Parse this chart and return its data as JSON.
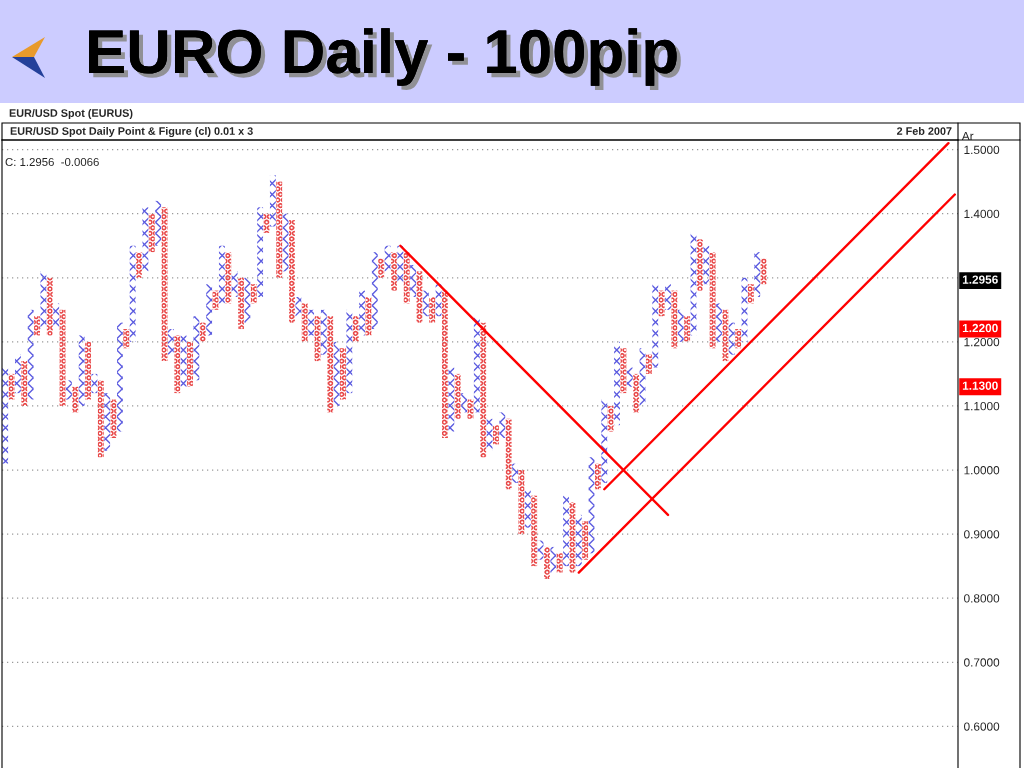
{
  "chart_data": {
    "type": "bar",
    "title": "EURO Daily - 100pip",
    "subtitle": "EUR/USD Spot (EURUS)",
    "ylabel": "Ar",
    "annotations": [
      "EUR/USD Spot Daily Point & Figure (cl) 0.01 x 3",
      "2 Feb 2007",
      "C: 1.2956  -0.0066",
      {
        "text": "1.2956",
        "y": 1.2956
      },
      {
        "text": "1.2200",
        "y": 1.22
      },
      {
        "text": "1.1300",
        "y": 1.13
      }
    ],
    "categories": [
      null,
      null,
      null,
      null,
      null,
      null,
      null,
      null,
      null,
      null,
      null,
      null,
      null,
      null,
      null,
      null,
      null,
      null,
      null,
      null,
      null,
      null,
      null,
      null,
      null,
      null,
      null,
      null,
      null,
      null,
      null,
      null,
      null,
      null,
      null,
      null,
      null,
      null,
      null,
      null,
      null,
      null,
      null,
      null,
      null,
      null,
      null,
      null,
      null,
      null,
      null,
      null,
      null,
      null,
      null,
      null,
      null,
      null,
      null,
      null,
      null,
      null,
      null,
      null,
      null,
      null,
      null,
      null,
      null,
      null,
      null,
      null,
      null,
      null,
      null,
      null,
      null,
      null,
      null,
      null,
      null,
      null,
      null,
      null,
      null,
      null,
      null,
      null,
      null,
      null,
      null,
      null,
      null,
      null,
      null,
      null,
      null,
      null,
      null,
      null,
      null,
      null,
      null,
      null,
      null,
      null,
      null,
      null,
      null,
      null,
      null,
      null,
      null,
      null,
      null,
      null,
      null,
      null,
      null,
      null,
      null,
      null,
      null,
      null,
      null,
      null,
      null,
      null,
      null,
      null,
      null,
      null,
      null,
      null,
      null,
      null,
      null,
      null,
      null,
      null,
      null,
      null,
      null,
      null,
      null,
      null,
      null,
      null,
      null,
      null
    ],
    "series": [
      {
        "color": "#5c5ce0",
        "marker": "cross",
        "base": [
          1.01,
          null,
          1.12,
          null,
          1.11,
          null,
          1.22,
          null,
          1.22,
          null,
          1.11,
          null,
          1.1,
          null,
          1.12,
          null,
          1.03,
          null,
          1.06,
          null,
          1.2,
          null,
          1.31,
          null,
          1.35,
          null,
          1.18,
          null,
          1.13,
          null,
          1.14,
          null,
          1.21,
          null,
          1.26,
          null,
          1.27,
          null,
          1.23,
          null,
          1.27,
          null,
          1.38,
          null,
          1.31,
          null,
          1.24,
          null,
          1.21,
          null,
          1.18,
          null,
          1.1,
          null,
          1.12,
          null,
          1.21,
          null,
          1.22,
          null,
          1.31,
          null,
          1.29,
          null,
          1.27,
          null,
          1.24,
          null,
          1.24,
          null,
          1.06,
          null,
          1.09,
          null,
          1.09,
          null,
          1.03,
          null,
          1.05,
          null,
          0.98,
          null,
          0.91,
          null,
          0.86,
          null,
          0.84,
          null,
          0.85,
          null,
          0.85,
          null,
          0.87,
          null,
          0.98,
          null,
          1.07,
          null,
          1.13,
          null,
          1.1,
          null,
          1.16,
          null,
          1.25,
          null,
          1.2,
          null,
          1.21,
          null,
          1.29,
          null,
          1.2,
          null,
          1.18,
          null,
          1.2,
          null,
          1.27,
          null,
          null,
          null,
          null,
          null,
          null,
          null,
          null,
          null,
          null,
          null,
          null,
          null,
          null,
          null,
          null,
          null,
          null,
          null,
          null,
          null,
          null,
          null,
          null,
          null,
          null,
          null,
          null,
          null,
          null,
          null
        ],
        "values": [
          0.15,
          null,
          0.06,
          null,
          0.14,
          null,
          0.09,
          null,
          0.04,
          null,
          0.03,
          null,
          0.11,
          null,
          0.03,
          null,
          0.09,
          null,
          0.17,
          null,
          0.15,
          null,
          0.1,
          null,
          0.07,
          null,
          0.04,
          null,
          0.08,
          null,
          0.1,
          null,
          0.08,
          null,
          0.09,
          null,
          0.04,
          null,
          0.07,
          null,
          0.14,
          null,
          0.08,
          null,
          0.09,
          null,
          0.03,
          null,
          0.04,
          null,
          0.07,
          null,
          0.1,
          null,
          0.13,
          null,
          0.07,
          null,
          0.12,
          null,
          0.04,
          null,
          0.06,
          null,
          0.05,
          null,
          0.04,
          null,
          0.05,
          null,
          0.1,
          null,
          0.03,
          null,
          0.15,
          null,
          0.05,
          null,
          0.04,
          null,
          0.03,
          null,
          0.06,
          null,
          0.03,
          null,
          0.04,
          null,
          0.11,
          null,
          0.08,
          null,
          0.15,
          null,
          0.13,
          null,
          0.13,
          null,
          0.03,
          null,
          0.09,
          null,
          0.13,
          null,
          0.04,
          null,
          0.05,
          null,
          0.16,
          null,
          0.06,
          null,
          0.06,
          null,
          0.05,
          null,
          0.1,
          null,
          0.07,
          null,
          null,
          null,
          null,
          null,
          null,
          null,
          null,
          null,
          null,
          null,
          null,
          null,
          null,
          null,
          null,
          null,
          null,
          null,
          null,
          null,
          null,
          null,
          null,
          null,
          null,
          null,
          null,
          null,
          null,
          null
        ]
      },
      {
        "color": "#e84848",
        "marker": "circle",
        "base": [
          null,
          1.11,
          null,
          1.1,
          null,
          1.21,
          null,
          1.21,
          null,
          1.1,
          null,
          1.09,
          null,
          1.11,
          null,
          1.02,
          null,
          1.05,
          null,
          1.19,
          null,
          1.3,
          null,
          1.34,
          null,
          1.17,
          null,
          1.12,
          null,
          1.13,
          null,
          1.2,
          null,
          1.25,
          null,
          1.26,
          null,
          1.22,
          null,
          1.26,
          null,
          1.37,
          null,
          1.3,
          null,
          1.23,
          null,
          1.2,
          null,
          1.17,
          null,
          1.09,
          null,
          1.11,
          null,
          1.2,
          null,
          1.21,
          null,
          1.3,
          null,
          1.28,
          null,
          1.26,
          null,
          1.23,
          null,
          1.23,
          null,
          1.05,
          null,
          1.08,
          null,
          1.08,
          null,
          1.02,
          null,
          1.04,
          null,
          0.97,
          null,
          0.9,
          null,
          0.85,
          null,
          0.83,
          null,
          0.84,
          null,
          0.84,
          null,
          0.86,
          null,
          0.97,
          null,
          1.06,
          null,
          1.12,
          null,
          1.09,
          null,
          1.15,
          null,
          1.24,
          null,
          1.19,
          null,
          1.2,
          null,
          1.28,
          null,
          1.19,
          null,
          1.17,
          null,
          1.19,
          null,
          1.26,
          null,
          1.29,
          null,
          null,
          null,
          null,
          null,
          null,
          null,
          null,
          null,
          null,
          null,
          null,
          null,
          null,
          null,
          null,
          null,
          null,
          null,
          null,
          null,
          null,
          null,
          null,
          null,
          null,
          null,
          null,
          null,
          null
        ],
        "values": [
          null,
          0.04,
          null,
          0.07,
          null,
          0.03,
          null,
          0.09,
          null,
          0.15,
          null,
          0.04,
          null,
          0.09,
          null,
          0.12,
          null,
          0.06,
          null,
          0.03,
          null,
          0.04,
          null,
          0.06,
          null,
          0.24,
          null,
          0.09,
          null,
          0.07,
          null,
          0.03,
          null,
          0.03,
          null,
          0.08,
          null,
          0.08,
          null,
          0.03,
          null,
          0.03,
          null,
          0.15,
          null,
          0.16,
          null,
          0.06,
          null,
          0.07,
          null,
          0.15,
          null,
          0.08,
          null,
          0.04,
          null,
          0.06,
          null,
          0.03,
          null,
          0.06,
          null,
          0.08,
          null,
          0.08,
          null,
          0.04,
          null,
          0.23,
          null,
          0.07,
          null,
          0.03,
          null,
          0.21,
          null,
          0.03,
          null,
          0.11,
          null,
          0.1,
          null,
          0.11,
          null,
          0.05,
          null,
          0.03,
          null,
          0.11,
          null,
          0.06,
          null,
          0.04,
          null,
          0.04,
          null,
          0.07,
          null,
          0.06,
          null,
          0.03,
          null,
          0.04,
          null,
          0.09,
          null,
          0.04,
          null,
          0.08,
          null,
          0.15,
          null,
          0.08,
          null,
          0.03,
          null,
          0.03,
          null,
          0.04,
          null,
          null,
          null,
          null,
          null,
          null,
          null,
          null,
          null,
          null,
          null,
          null,
          null,
          null,
          null,
          null,
          null,
          null,
          null,
          null,
          null,
          null,
          null,
          null,
          null,
          null,
          null,
          null,
          null,
          null
        ]
      },
      {
        "type": "line",
        "color": "#ff0000",
        "values": [
          null,
          null,
          null,
          null,
          null,
          null,
          null,
          null,
          null,
          null,
          null,
          null,
          null,
          null,
          null,
          null,
          null,
          null,
          null,
          null,
          null,
          null,
          null,
          null,
          null,
          null,
          null,
          null,
          null,
          null,
          null,
          null,
          null,
          null,
          null,
          null,
          null,
          null,
          null,
          null,
          null,
          null,
          null,
          null,
          null,
          null,
          null,
          null,
          null,
          null,
          null,
          null,
          null,
          null,
          null,
          null,
          null,
          null,
          null,
          null,
          null,
          null,
          1.35,
          null,
          null,
          null,
          null,
          null,
          null,
          null,
          null,
          null,
          null,
          null,
          null,
          null,
          null,
          null,
          null,
          null,
          null,
          null,
          null,
          null,
          null,
          null,
          null,
          null,
          null,
          null,
          null,
          null,
          null,
          null,
          null,
          null,
          null,
          null,
          null,
          null,
          null,
          null,
          null,
          null,
          0.93,
          null,
          null,
          null,
          null,
          null,
          null,
          null,
          null,
          null,
          null,
          null,
          null,
          null,
          null,
          null,
          null,
          null,
          null,
          null,
          null,
          null,
          null,
          null,
          null,
          null,
          null,
          null,
          null,
          null,
          null,
          null,
          null,
          null,
          null,
          null,
          null,
          null,
          null,
          null,
          null,
          null,
          null,
          null,
          null,
          null
        ]
      },
      {
        "type": "line",
        "color": "#ff0000",
        "values": [
          null,
          null,
          null,
          null,
          null,
          null,
          null,
          null,
          null,
          null,
          null,
          null,
          null,
          null,
          null,
          null,
          null,
          null,
          null,
          null,
          null,
          null,
          null,
          null,
          null,
          null,
          null,
          null,
          null,
          null,
          null,
          null,
          null,
          null,
          null,
          null,
          null,
          null,
          null,
          null,
          null,
          null,
          null,
          null,
          null,
          null,
          null,
          null,
          null,
          null,
          null,
          null,
          null,
          null,
          null,
          null,
          null,
          null,
          null,
          null,
          null,
          null,
          null,
          null,
          null,
          null,
          null,
          null,
          null,
          null,
          null,
          null,
          null,
          null,
          null,
          null,
          null,
          null,
          null,
          null,
          null,
          null,
          null,
          null,
          null,
          null,
          null,
          null,
          null,
          null,
          0.84,
          null,
          null,
          null,
          null,
          null,
          null,
          null,
          null,
          null,
          null,
          null,
          null,
          null,
          null,
          null,
          null,
          null,
          null,
          null,
          null,
          null,
          null,
          null,
          null,
          null,
          null,
          null,
          null,
          null,
          null,
          null,
          null,
          null,
          null,
          null,
          null,
          null,
          null,
          null,
          null,
          null,
          null,
          null,
          null,
          null,
          null,
          null,
          null,
          null,
          null,
          null,
          null,
          null,
          null,
          null,
          null,
          null,
          null,
          1.43
        ]
      },
      {
        "type": "line",
        "color": "#ff0000",
        "values": [
          null,
          null,
          null,
          null,
          null,
          null,
          null,
          null,
          null,
          null,
          null,
          null,
          null,
          null,
          null,
          null,
          null,
          null,
          null,
          null,
          null,
          null,
          null,
          null,
          null,
          null,
          null,
          null,
          null,
          null,
          null,
          null,
          null,
          null,
          null,
          null,
          null,
          null,
          null,
          null,
          null,
          null,
          null,
          null,
          null,
          null,
          null,
          null,
          null,
          null,
          null,
          null,
          null,
          null,
          null,
          null,
          null,
          null,
          null,
          null,
          null,
          null,
          null,
          null,
          null,
          null,
          null,
          null,
          null,
          null,
          null,
          null,
          null,
          null,
          null,
          null,
          null,
          null,
          null,
          null,
          null,
          null,
          null,
          null,
          null,
          null,
          null,
          null,
          null,
          null,
          null,
          null,
          null,
          null,
          0.97,
          null,
          null,
          null,
          null,
          null,
          null,
          null,
          null,
          null,
          null,
          null,
          null,
          null,
          null,
          null,
          null,
          null,
          null,
          null,
          null,
          null,
          null,
          null,
          null,
          null,
          null,
          null,
          null,
          null,
          null,
          null,
          null,
          null,
          null,
          null,
          null,
          null,
          null,
          null,
          null,
          null,
          null,
          null,
          null,
          null,
          null,
          null,
          null,
          null,
          null,
          null,
          null,
          null,
          1.51,
          null
        ]
      }
    ],
    "ylim": [
      0.535,
      1.515
    ],
    "yticks": [
      {
        "value": 0.6,
        "label": "0.6000"
      },
      {
        "value": 0.7,
        "label": "0.7000"
      },
      {
        "value": 0.8,
        "label": "0.8000"
      },
      {
        "value": 0.9,
        "label": "0.9000"
      },
      {
        "value": 1.0,
        "label": "1.0000"
      },
      {
        "value": 1.1,
        "label": "1.1000"
      },
      {
        "value": 1.2,
        "label": "1.2000"
      },
      {
        "value": 1.3,
        "label": null
      },
      {
        "value": 1.4,
        "label": "1.4000"
      },
      {
        "value": 1.5,
        "label": "1.5000"
      }
    ],
    "grid": "y",
    "tick_labels": "y"
  }
}
